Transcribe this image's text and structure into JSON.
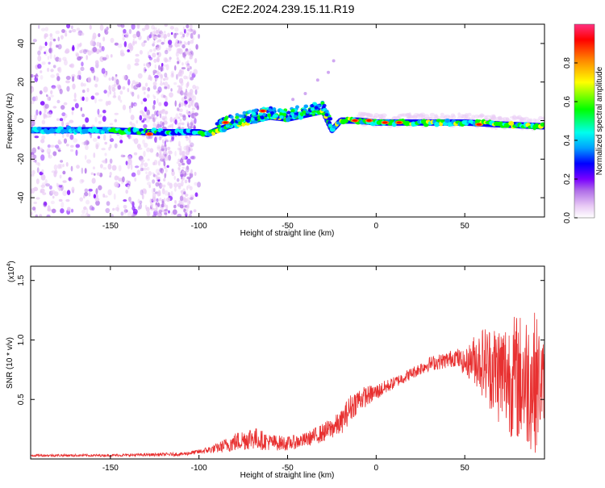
{
  "page": {
    "title": "C2E2.2024.239.15.11.R19"
  },
  "chart_data": [
    {
      "type": "heatmap",
      "title": "C2E2.2024.239.15.11.R19",
      "xlabel": "Height of straight line (km)",
      "ylabel": "Frequency (Hz)",
      "xlim": [
        -195,
        95
      ],
      "ylim": [
        -50,
        50
      ],
      "xticks": [
        -150,
        -100,
        -50,
        0,
        50
      ],
      "xtick_labels": [
        "-150",
        "-100",
        "-50",
        "0",
        "50"
      ],
      "yticks": [
        -40,
        -20,
        0,
        20,
        40
      ],
      "ytick_labels": [
        "-40",
        "-20",
        "0",
        "20",
        "40"
      ],
      "colorbar": {
        "label": "Normalized spectral amplitude",
        "range": [
          0,
          1
        ],
        "ticks": [
          0.0,
          0.2,
          0.4,
          0.6,
          0.8
        ],
        "tick_labels": [
          "0.0",
          "0.2",
          "0.4",
          "0.6",
          "0.8"
        ],
        "colors": [
          "#ffffff",
          "#e9cbf5",
          "#b06ee8",
          "#7a00ff",
          "#0000ff",
          "#00a0ff",
          "#00ffee",
          "#00ff00",
          "#ffff00",
          "#ff8000",
          "#ff0000",
          "#ff3080"
        ]
      },
      "ridge": {
        "description": "dominant frequency track",
        "x": [
          -195,
          -150,
          -130,
          -110,
          -100,
          -95,
          -90,
          -80,
          -70,
          -60,
          -50,
          -40,
          -30,
          -25,
          -20,
          -10,
          0,
          10,
          30,
          50,
          70,
          95
        ],
        "freq": [
          -5,
          -5,
          -6,
          -6,
          -6,
          -7,
          -5,
          -2,
          0,
          2,
          1,
          3,
          5,
          -5,
          0,
          0,
          -1,
          -1,
          -1,
          -1,
          -2,
          -3
        ]
      }
    },
    {
      "type": "line",
      "xlabel": "Height of straight line (km)",
      "ylabel": "SNR (10 * v/v)",
      "scale_label": "(x10",
      "scale_exp": "4",
      "scale_close": ")",
      "xlim": [
        -195,
        95
      ],
      "ylim": [
        0,
        1.62
      ],
      "xticks": [
        -150,
        -100,
        -50,
        0,
        50
      ],
      "xtick_labels": [
        "-150",
        "-100",
        "-50",
        "0",
        "50"
      ],
      "yticks": [
        0.5,
        1.0,
        1.5
      ],
      "ytick_labels": [
        "0.5",
        "1.0",
        "1.5"
      ],
      "line_color": "#e83030",
      "envelope": {
        "x": [
          -195,
          -150,
          -110,
          -100,
          -90,
          -80,
          -70,
          -60,
          -50,
          -40,
          -30,
          -20,
          -15,
          -10,
          0,
          10,
          20,
          30,
          40,
          45,
          50,
          55,
          60,
          70,
          80,
          90,
          95
        ],
        "mean": [
          0.03,
          0.03,
          0.04,
          0.06,
          0.09,
          0.14,
          0.18,
          0.14,
          0.13,
          0.16,
          0.22,
          0.3,
          0.42,
          0.5,
          0.56,
          0.64,
          0.72,
          0.8,
          0.83,
          0.86,
          0.8,
          0.84,
          0.82,
          0.72,
          0.68,
          0.65,
          0.65
        ],
        "spread": [
          0.01,
          0.01,
          0.015,
          0.02,
          0.04,
          0.08,
          0.1,
          0.07,
          0.06,
          0.06,
          0.08,
          0.1,
          0.12,
          0.1,
          0.07,
          0.05,
          0.05,
          0.06,
          0.07,
          0.08,
          0.1,
          0.2,
          0.3,
          0.45,
          0.55,
          0.6,
          0.3
        ]
      }
    }
  ]
}
